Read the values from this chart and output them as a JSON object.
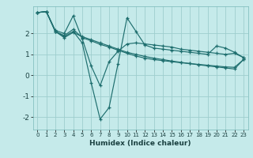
{
  "xlabel": "Humidex (Indice chaleur)",
  "bg_color": "#c5eaea",
  "line_color": "#1e6e6e",
  "grid_color": "#9ecece",
  "xlim": [
    -0.5,
    23.5
  ],
  "ylim": [
    -2.6,
    3.3
  ],
  "xticks": [
    0,
    1,
    2,
    3,
    4,
    5,
    6,
    7,
    8,
    9,
    10,
    11,
    12,
    13,
    14,
    15,
    16,
    17,
    18,
    19,
    20,
    21,
    22,
    23
  ],
  "yticks": [
    -2,
    -1,
    0,
    1,
    2
  ],
  "series": [
    [
      3.0,
      3.05,
      2.15,
      2.0,
      2.85,
      1.75,
      0.45,
      -0.5,
      0.65,
      1.15,
      1.5,
      1.55,
      1.5,
      1.45,
      1.4,
      1.35,
      1.25,
      1.2,
      1.15,
      1.1,
      1.05,
      1.0,
      1.05,
      0.85
    ],
    [
      3.0,
      3.05,
      2.1,
      1.85,
      2.1,
      1.55,
      -0.35,
      -2.1,
      -1.55,
      0.55,
      2.75,
      2.1,
      1.45,
      1.3,
      1.25,
      1.2,
      1.15,
      1.1,
      1.05,
      1.0,
      1.4,
      1.3,
      1.1,
      0.85
    ],
    [
      3.0,
      3.05,
      2.1,
      1.8,
      2.05,
      1.85,
      1.7,
      1.55,
      1.4,
      1.25,
      1.1,
      1.0,
      0.9,
      0.82,
      0.75,
      0.68,
      0.62,
      0.56,
      0.5,
      0.45,
      0.4,
      0.35,
      0.3,
      0.75
    ],
    [
      3.0,
      3.05,
      2.1,
      1.9,
      2.2,
      1.8,
      1.65,
      1.48,
      1.35,
      1.2,
      1.05,
      0.92,
      0.82,
      0.75,
      0.7,
      0.65,
      0.6,
      0.56,
      0.52,
      0.48,
      0.44,
      0.4,
      0.38,
      0.75
    ]
  ]
}
